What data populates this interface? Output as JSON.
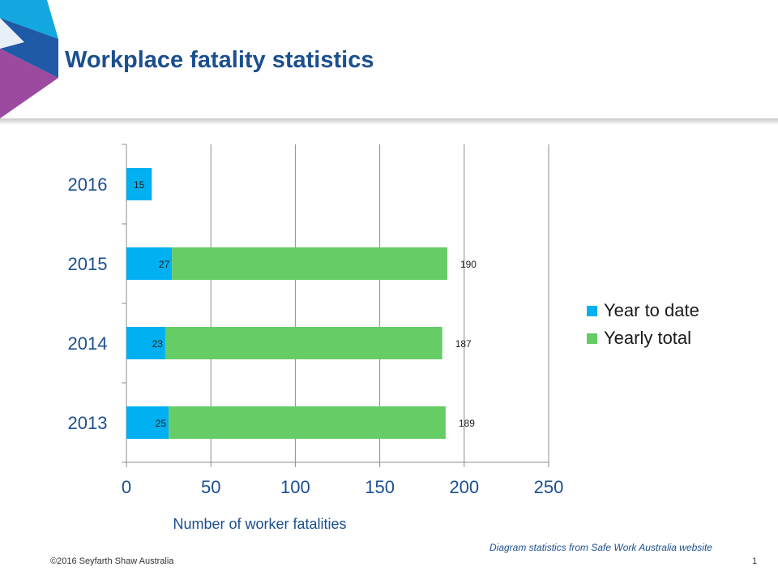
{
  "slide": {
    "title": "Workplace fatality statistics",
    "source_note": "Diagram  statistics from Safe Work Australia website",
    "copyright": "©2016 Seyfarth Shaw Australia",
    "page_number": "1"
  },
  "colors": {
    "title": "#1b4f8f",
    "year_to_date": "#00b0f0",
    "yearly_total": "#66cc66",
    "logo_cyan": "#13a8e0",
    "logo_blue": "#1f5aa6",
    "logo_purple": "#9b4aa0"
  },
  "chart_data": {
    "type": "bar",
    "orientation": "horizontal",
    "stacked": true,
    "categories": [
      "2016",
      "2015",
      "2014",
      "2013"
    ],
    "series": [
      {
        "name": "Year to date",
        "values": [
          15,
          27,
          23,
          25
        ],
        "labels": [
          "15",
          "27",
          "23",
          "25"
        ]
      },
      {
        "name": "Yearly total",
        "values": [
          null,
          190,
          187,
          189
        ],
        "labels": [
          "",
          "190",
          "187",
          "189"
        ]
      }
    ],
    "xlabel": "Number  of worker fatalities",
    "ylabel": "",
    "xlim": [
      0,
      250
    ],
    "xticks": [
      "0",
      "50",
      "100",
      "150",
      "200",
      "250"
    ],
    "grid": true,
    "legend_position": "right"
  }
}
